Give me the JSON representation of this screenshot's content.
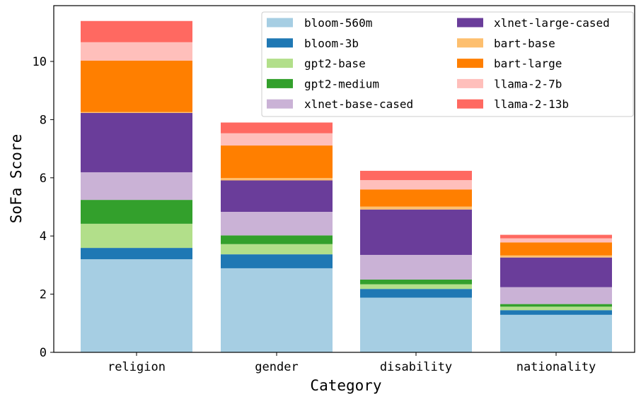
{
  "chart_data": {
    "type": "bar",
    "stacked": true,
    "title": "",
    "xlabel": "Category",
    "ylabel": "SoFa Score",
    "ylim": [
      0,
      11.8
    ],
    "yticks": [
      0,
      2,
      4,
      6,
      8,
      10
    ],
    "grid": false,
    "legend_placement": "top-right",
    "categories": [
      "religion",
      "gender",
      "disability",
      "nationality"
    ],
    "series": [
      {
        "name": "bloom-560m",
        "color": "#a6cee3",
        "values": [
          3.2,
          2.89,
          1.88,
          1.29
        ]
      },
      {
        "name": "bloom-3b",
        "color": "#1f78b4",
        "values": [
          0.39,
          0.48,
          0.3,
          0.16
        ]
      },
      {
        "name": "gpt2-base",
        "color": "#b2df8a",
        "values": [
          0.83,
          0.35,
          0.16,
          0.12
        ]
      },
      {
        "name": "gpt2-medium",
        "color": "#33a02c",
        "values": [
          0.82,
          0.3,
          0.16,
          0.09
        ]
      },
      {
        "name": "xlnet-base-cased",
        "color": "#cab2d6",
        "values": [
          0.95,
          0.81,
          0.85,
          0.58
        ]
      },
      {
        "name": "xlnet-large-cased",
        "color": "#6a3d9a",
        "values": [
          2.04,
          1.08,
          1.56,
          1.02
        ]
      },
      {
        "name": "bart-base",
        "color": "#fdbf6f",
        "values": [
          0.03,
          0.08,
          0.1,
          0.07
        ]
      },
      {
        "name": "bart-large",
        "color": "#ff7f00",
        "values": [
          1.77,
          1.12,
          0.59,
          0.45
        ]
      },
      {
        "name": "llama-2-7b",
        "color": "#ffbfbb",
        "values": [
          0.63,
          0.42,
          0.32,
          0.14
        ]
      },
      {
        "name": "llama-2-13b",
        "color": "#ff6961",
        "values": [
          0.73,
          0.37,
          0.32,
          0.12
        ]
      }
    ]
  }
}
